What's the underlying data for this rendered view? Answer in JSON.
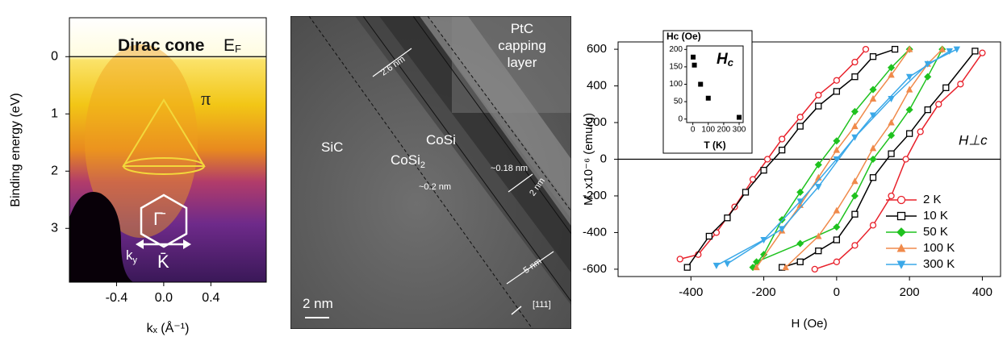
{
  "chart_data": [
    {
      "type": "image",
      "ylabel": "Binding energy (eV)",
      "xlabel": "kₓ (Å⁻¹)",
      "xlim": [
        -0.8,
        0.87
      ],
      "ylim": [
        3.94,
        -0.68
      ],
      "xticks": [
        -0.4,
        {
          "value": 0,
          "label": "0.0"
        },
        0.4
      ],
      "yticks": [
        0,
        1,
        2,
        3
      ],
      "zero_line": true,
      "annotations": [
        {
          "text": "Dirac cone"
        },
        {
          "text": "E",
          "sub": "F"
        },
        {
          "text": "π"
        },
        {
          "text": "Γ̄"
        },
        {
          "text": "K̄"
        },
        {
          "text": "k",
          "sub": "y"
        }
      ]
    },
    {
      "type": "image",
      "annotations": [
        {
          "text": "PtC"
        },
        {
          "text": "capping"
        },
        {
          "text": "layer"
        },
        {
          "text": "2.6 nm"
        },
        {
          "text": "CoSi"
        },
        {
          "text": "CoSi",
          "sub": "2"
        },
        {
          "text": "~0.18 nm"
        },
        {
          "text": "~0.2 nm"
        },
        {
          "text": "SiC"
        },
        {
          "text": "2 nm"
        },
        {
          "text": "5 nm"
        },
        {
          "text": "[111]"
        },
        {
          "text": "2 nm"
        }
      ]
    },
    {
      "type": "line",
      "xlabel": "H (Oe)",
      "ylabel": "M, x10⁻⁶ (emu/g)",
      "xlim": [
        -600,
        450
      ],
      "ylim": [
        -640,
        640
      ],
      "xticks": [
        -400,
        -200,
        0,
        200,
        400
      ],
      "yticks": [
        -600,
        -400,
        -200,
        0,
        200,
        400,
        600
      ],
      "zero_line": true,
      "legend": "right",
      "annotation": "H⊥c",
      "series": [
        {
          "name": "2 K",
          "color": "#e8202a",
          "marker": "circle",
          "x": [
            -430,
            -380,
            -330,
            -280,
            -230,
            -190,
            -150,
            -100,
            -50,
            0,
            50,
            80,
            null,
            -60,
            0,
            50,
            100,
            150,
            190,
            230,
            280,
            340,
            400
          ],
          "values": [
            -545,
            -520,
            -400,
            -260,
            -110,
            0,
            110,
            230,
            350,
            430,
            530,
            600,
            null,
            -600,
            -560,
            -470,
            -360,
            -200,
            0,
            150,
            300,
            410,
            580
          ]
        },
        {
          "name": "10 K",
          "color": "#000000",
          "marker": "square",
          "x": [
            -410,
            -350,
            -300,
            -250,
            -200,
            -150,
            -100,
            -50,
            0,
            50,
            100,
            160,
            null,
            -150,
            -100,
            -50,
            0,
            50,
            100,
            150,
            200,
            250,
            300,
            380
          ],
          "values": [
            -590,
            -420,
            -320,
            -180,
            -60,
            50,
            180,
            290,
            370,
            450,
            560,
            600,
            null,
            -590,
            -560,
            -500,
            -440,
            -300,
            -100,
            30,
            140,
            270,
            390,
            590
          ]
        },
        {
          "name": "50 K",
          "color": "#1fc21f",
          "marker": "diamond",
          "x": [
            -230,
            -200,
            -150,
            -100,
            -50,
            0,
            50,
            100,
            150,
            200,
            null,
            -220,
            -100,
            0,
            50,
            100,
            150,
            200,
            250,
            290
          ],
          "values": [
            -590,
            -520,
            -330,
            -180,
            -30,
            100,
            260,
            380,
            500,
            600,
            null,
            -560,
            -460,
            -370,
            -200,
            0,
            130,
            270,
            450,
            600
          ]
        },
        {
          "name": "100 K",
          "color": "#f08a4b",
          "marker": "tri-up",
          "x": [
            -220,
            -150,
            -100,
            -50,
            0,
            50,
            100,
            150,
            200,
            null,
            -140,
            -50,
            0,
            50,
            100,
            150,
            200,
            250,
            290
          ],
          "values": [
            -590,
            -390,
            -250,
            -100,
            50,
            180,
            330,
            460,
            600,
            null,
            -590,
            -420,
            -280,
            -120,
            60,
            200,
            380,
            520,
            600
          ]
        },
        {
          "name": "300 K",
          "color": "#3aa8e8",
          "marker": "tri-down",
          "x": [
            -330,
            -200,
            -100,
            0,
            100,
            200,
            310,
            null,
            -300,
            -150,
            -50,
            50,
            150,
            250,
            330
          ],
          "values": [
            -580,
            -440,
            -230,
            0,
            240,
            450,
            590,
            null,
            -570,
            -380,
            -150,
            120,
            330,
            520,
            600
          ]
        }
      ]
    },
    {
      "type": "scatter",
      "title": "Hc (Oe)",
      "xlabel": "T (K)",
      "annotation": {
        "text": "H",
        "sub": "c"
      },
      "xlim": [
        -40,
        326
      ],
      "ylim": [
        -10,
        210
      ],
      "xticks": [
        0,
        100,
        200,
        300
      ],
      "yticks": [
        0,
        50,
        100,
        150,
        200
      ],
      "color": "#000000",
      "x": [
        2,
        10,
        50,
        100,
        300
      ],
      "values": [
        178,
        155,
        100,
        60,
        5
      ]
    }
  ]
}
